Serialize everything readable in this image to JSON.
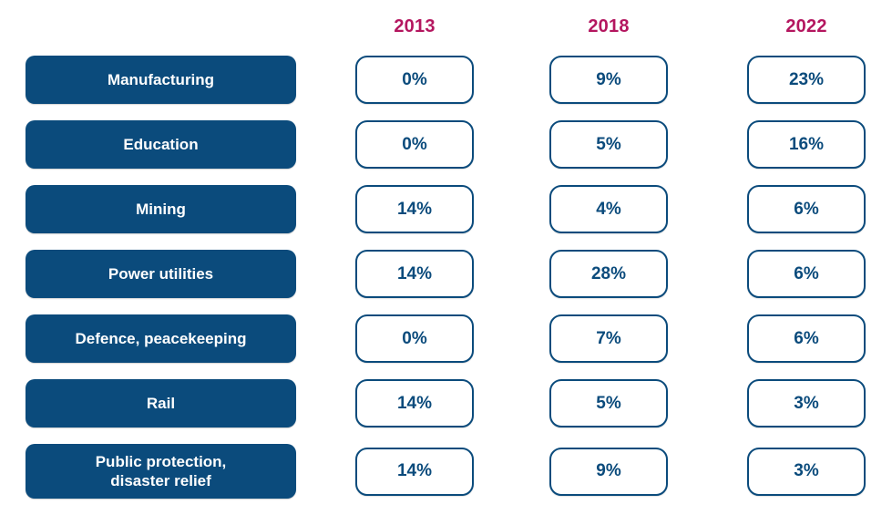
{
  "columns": [
    "2013",
    "2018",
    "2022"
  ],
  "rows": [
    {
      "label": "Manufacturing",
      "values": [
        "0%",
        "9%",
        "23%"
      ]
    },
    {
      "label": "Education",
      "values": [
        "0%",
        "5%",
        "16%"
      ]
    },
    {
      "label": "Mining",
      "values": [
        "14%",
        "4%",
        "6%"
      ]
    },
    {
      "label": "Power utilities",
      "values": [
        "14%",
        "28%",
        "6%"
      ]
    },
    {
      "label": "Defence, peacekeeping",
      "values": [
        "0%",
        "7%",
        "6%"
      ]
    },
    {
      "label": "Rail",
      "values": [
        "14%",
        "5%",
        "3%"
      ]
    },
    {
      "label": "Public protection,\ndisaster relief",
      "values": [
        "14%",
        "9%",
        "3%"
      ]
    }
  ],
  "colors": {
    "pill_background": "#0b4b7c",
    "pill_text": "#ffffff",
    "value_text": "#0b4b7c",
    "value_border": "#0b4b7c",
    "year_text": "#b4165f"
  },
  "chart_data": {
    "type": "table",
    "title": "",
    "categories": [
      "Manufacturing",
      "Education",
      "Mining",
      "Power utilities",
      "Defence, peacekeeping",
      "Rail",
      "Public protection, disaster relief"
    ],
    "series": [
      {
        "name": "2013",
        "values": [
          0,
          0,
          14,
          14,
          0,
          14,
          14
        ]
      },
      {
        "name": "2018",
        "values": [
          9,
          5,
          4,
          28,
          7,
          5,
          9
        ]
      },
      {
        "name": "2022",
        "values": [
          23,
          16,
          6,
          6,
          6,
          3,
          3
        ]
      }
    ],
    "unit": "%",
    "layout": "sector rows with one percentage box per year column"
  }
}
